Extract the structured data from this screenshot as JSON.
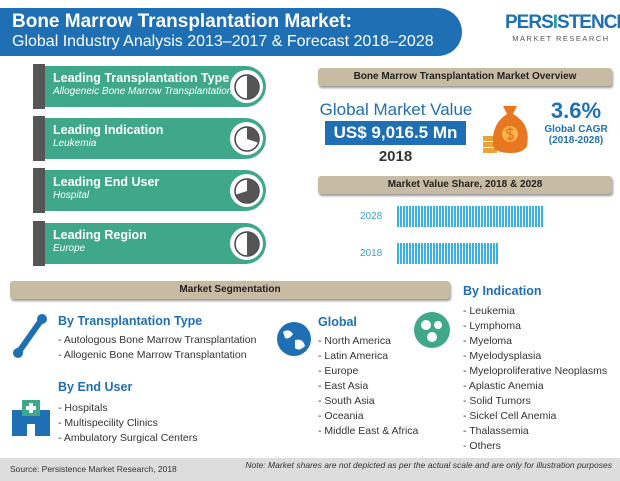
{
  "header": {
    "title": "Bone Marrow Transplantation Market:",
    "subtitle": "Global Industry Analysis 2013–2017 & Forecast 2018–2028"
  },
  "logo": {
    "line1a": "PERS",
    "line1b": "I",
    "line1c": "STENCE",
    "line2": "MARKET RESEARCH"
  },
  "leading": [
    {
      "title": "Leading Transplantation Type",
      "value": "Allogeneic Bone Marrow Transplantation",
      "share": 0.5
    },
    {
      "title": "Leading Indication",
      "value": "Leukemia",
      "share": 0.3
    },
    {
      "title": "Leading End User",
      "value": "Hospital",
      "share": 0.7
    },
    {
      "title": "Leading Region",
      "value": "Europe",
      "share": 0.5
    }
  ],
  "overview": {
    "heading": "Bone Marrow Transplantation Market Overview",
    "value_label": "Global Market Value",
    "value": "US$ 9,016.5 Mn",
    "year": "2018",
    "cagr": "3.6%",
    "cagr_label": "Global CAGR",
    "cagr_period": "(2018-2028)"
  },
  "colors": {
    "blue": "#1f6fb5",
    "teal": "#3fa88b",
    "tan": "#c8bba3",
    "bar": "#3ab0e6"
  },
  "chart_data": {
    "type": "bar",
    "title": "Market Value Share, 2018 & 2028",
    "categories": [
      "2028",
      "2018"
    ],
    "values": [
      100,
      70
    ],
    "ylabel": "",
    "xlabel": ""
  },
  "segmentation": {
    "heading": "Market Segmentation",
    "transplantation": {
      "title": "By Transplantation Type",
      "items": [
        "Autologous Bone Marrow Transplantation",
        "Allogenic Bone Marrow Transplantation"
      ]
    },
    "end_user": {
      "title": "By End User",
      "items": [
        "Hospitals",
        "Multispecility Clinics",
        "Ambulatory Surgical Centers"
      ]
    },
    "global": {
      "title": "Global",
      "items": [
        "North America",
        "Latin America",
        "Europe",
        "East Asia",
        "South Asia",
        "Oceania",
        "Middle East & Africa"
      ]
    },
    "indication": {
      "title": "By Indication",
      "items": [
        "Leukemia",
        "Lymphoma",
        "Myeloma",
        "Myelodysplasia",
        "Myeloproliferative Neoplasms",
        "Aplastic Anemia",
        "Solid Tumors",
        "Sickel Cell Anemia",
        "Thalassemia",
        "Others"
      ]
    }
  },
  "footer": {
    "source": "Source: Persistence Market Research, 2018",
    "note": "Note: Market shares are not depicted as per the actual scale and are only for illustration purposes"
  }
}
